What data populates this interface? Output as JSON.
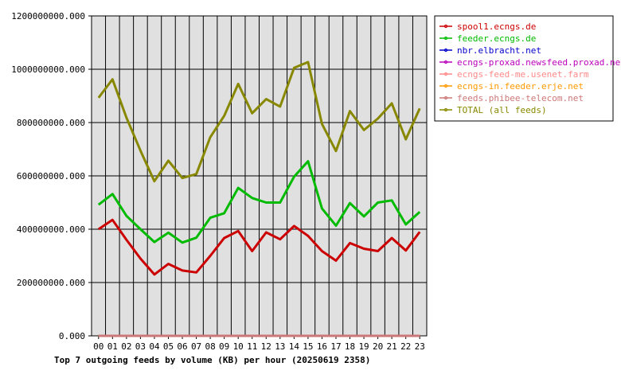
{
  "chart_data": {
    "type": "line",
    "title": "Top 7 outgoing feeds by volume (KB) per hour (20250619 2358)",
    "xlabel": "",
    "ylabel": "",
    "ylim": [
      0,
      1200000000
    ],
    "yticks": [
      0,
      200000000,
      400000000,
      600000000,
      800000000,
      1000000000,
      1200000000
    ],
    "ytick_labels": [
      "0.000",
      "200000000.000",
      "400000000.000",
      "600000000.000",
      "800000000.000",
      "1000000000.000",
      "1200000000.000"
    ],
    "categories": [
      "00",
      "01",
      "02",
      "03",
      "04",
      "05",
      "06",
      "07",
      "08",
      "09",
      "10",
      "11",
      "12",
      "13",
      "14",
      "15",
      "16",
      "17",
      "18",
      "19",
      "20",
      "21",
      "22",
      "23"
    ],
    "grid": true,
    "legend_position": "right",
    "series": [
      {
        "name": "spool1.ecngs.de",
        "color": "#cc0000",
        "values": [
          400000000,
          435000000,
          360000000,
          290000000,
          230000000,
          270000000,
          245000000,
          238000000,
          300000000,
          367000000,
          393000000,
          318000000,
          388000000,
          362000000,
          412000000,
          375000000,
          318000000,
          282000000,
          348000000,
          327000000,
          318000000,
          367000000,
          320000000,
          390000000
        ]
      },
      {
        "name": "feeder.ecngs.de",
        "color": "#00bb00",
        "values": [
          492000000,
          532000000,
          450000000,
          400000000,
          352000000,
          387000000,
          350000000,
          368000000,
          443000000,
          460000000,
          555000000,
          517000000,
          500000000,
          500000000,
          597000000,
          655000000,
          478000000,
          413000000,
          498000000,
          448000000,
          500000000,
          508000000,
          418000000,
          465000000
        ]
      },
      {
        "name": "nbr.elbracht.net",
        "color": "#0000cc",
        "values": [
          0,
          0,
          0,
          0,
          0,
          0,
          0,
          0,
          0,
          0,
          0,
          0,
          0,
          0,
          0,
          0,
          0,
          0,
          0,
          0,
          0,
          0,
          0,
          0
        ]
      },
      {
        "name": "ecngs-proxad.newsfeed.proxad.net",
        "color": "#bb00bb",
        "values": [
          0,
          0,
          0,
          0,
          0,
          0,
          0,
          0,
          0,
          0,
          0,
          0,
          0,
          0,
          0,
          0,
          0,
          0,
          0,
          0,
          0,
          0,
          0,
          0
        ]
      },
      {
        "name": "ecngs-feed-me.usenet.farm",
        "color": "#ff8888",
        "values": [
          0,
          0,
          0,
          0,
          0,
          0,
          0,
          0,
          0,
          0,
          0,
          0,
          0,
          0,
          0,
          0,
          0,
          0,
          0,
          0,
          0,
          0,
          0,
          0
        ]
      },
      {
        "name": "ecngs-in.feeder.erje.net",
        "color": "#ff9900",
        "values": [
          0,
          0,
          0,
          0,
          0,
          0,
          0,
          0,
          0,
          0,
          0,
          0,
          0,
          0,
          0,
          0,
          0,
          0,
          0,
          0,
          0,
          0,
          0,
          0
        ]
      },
      {
        "name": "feeds.phibee-telecom.net",
        "color": "#cc7777",
        "values": [
          0,
          0,
          0,
          0,
          0,
          0,
          0,
          0,
          0,
          0,
          0,
          0,
          0,
          0,
          0,
          0,
          0,
          0,
          0,
          0,
          0,
          0,
          0,
          0
        ]
      },
      {
        "name": "TOTAL (all feeds)",
        "color": "#888800",
        "values": [
          893000000,
          962000000,
          818000000,
          695000000,
          580000000,
          657000000,
          592000000,
          607000000,
          745000000,
          825000000,
          945000000,
          835000000,
          888000000,
          860000000,
          1005000000,
          1027000000,
          795000000,
          693000000,
          843000000,
          772000000,
          815000000,
          872000000,
          737000000,
          853000000
        ]
      }
    ]
  }
}
